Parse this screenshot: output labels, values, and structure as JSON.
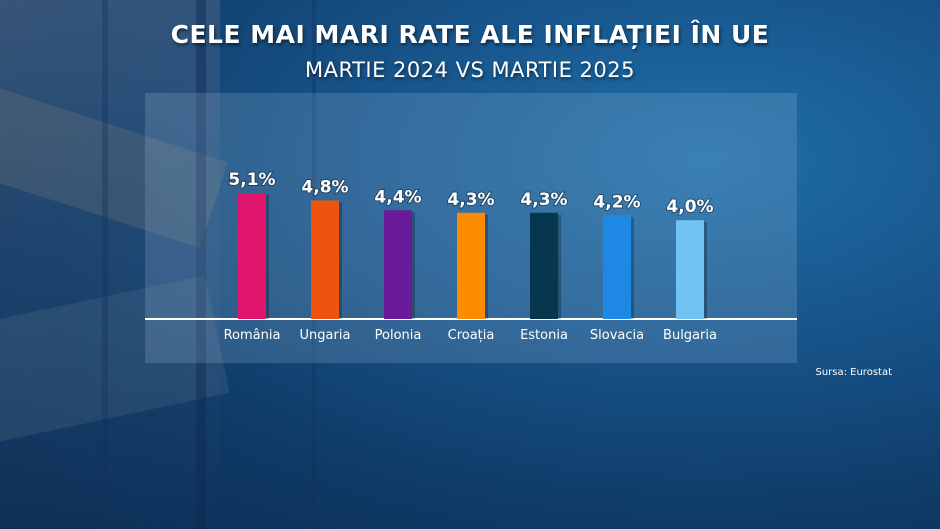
{
  "title": "CELE MAI MARI RATE ALE INFLAȚIEI ÎN UE",
  "subtitle": "MARTIE 2024 VS MARTIE 2025",
  "source": "Sursa: Eurostat",
  "chart_data": {
    "type": "bar",
    "title": "CELE MAI MARI RATE ALE INFLAȚIEI ÎN UE",
    "subtitle": "MARTIE 2024 VS MARTIE 2025",
    "categories": [
      "România",
      "Ungaria",
      "Polonia",
      "Croația",
      "Estonia",
      "Slovacia",
      "Bulgaria"
    ],
    "values": [
      5.1,
      4.8,
      4.4,
      4.3,
      4.3,
      4.2,
      4.0
    ],
    "labels": [
      "5,1%",
      "4,8%",
      "4,4%",
      "4,3%",
      "4,3%",
      "4,2%",
      "4,0%"
    ],
    "colors": [
      "#e0156e",
      "#ee5310",
      "#6a1b9a",
      "#fb8c00",
      "#07374f",
      "#1e88e5",
      "#72c3f4"
    ],
    "xlabel": "",
    "ylabel": "",
    "grid": false
  }
}
